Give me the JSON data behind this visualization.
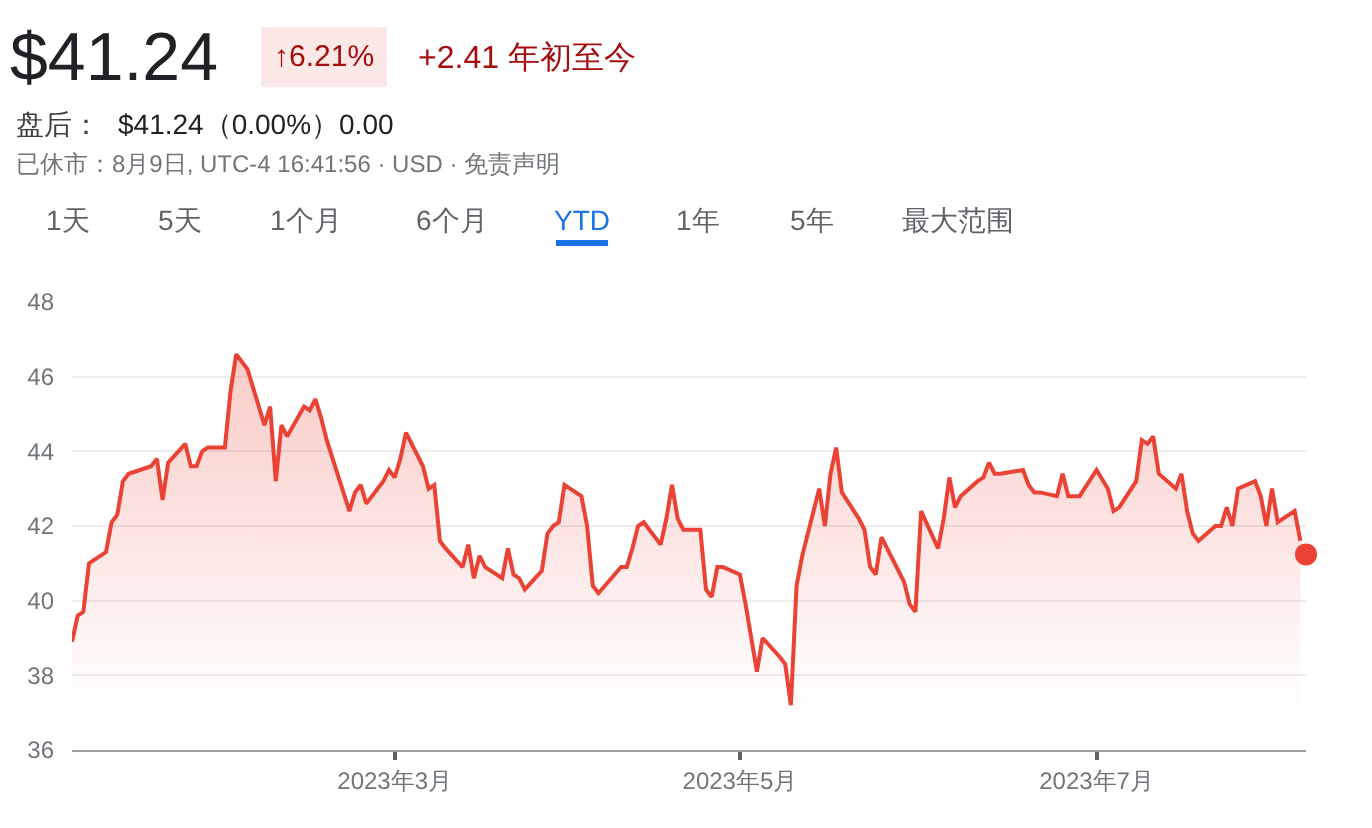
{
  "chart_data": {
    "type": "area",
    "title": "$41.24",
    "annotations": [
      "↑6.21%",
      "+2.41 年初至今",
      "盘后：",
      "$41.24（0.00%）0.00",
      "已休市：8月9日, UTC-4 16:41:56 · USD · 免责声明",
      "1天",
      "5天",
      "1个月",
      "6个月",
      "YTD",
      "1年",
      "5年",
      "最大范围"
    ],
    "x": [
      "2023-01-03",
      "2023-01-04",
      "2023-01-05",
      "2023-01-06",
      "2023-01-09",
      "2023-01-10",
      "2023-01-11",
      "2023-01-12",
      "2023-01-13",
      "2023-01-17",
      "2023-01-18",
      "2023-01-19",
      "2023-01-20",
      "2023-01-23",
      "2023-01-24",
      "2023-01-25",
      "2023-01-26",
      "2023-01-27",
      "2023-01-30",
      "2023-01-31",
      "2023-02-01",
      "2023-02-02",
      "2023-02-03",
      "2023-02-06",
      "2023-02-07",
      "2023-02-08",
      "2023-02-09",
      "2023-02-10",
      "2023-02-13",
      "2023-02-14",
      "2023-02-15",
      "2023-02-16",
      "2023-02-17",
      "2023-02-21",
      "2023-02-22",
      "2023-02-23",
      "2023-02-24",
      "2023-02-27",
      "2023-02-28",
      "2023-03-01",
      "2023-03-02",
      "2023-03-03",
      "2023-03-06",
      "2023-03-07",
      "2023-03-08",
      "2023-03-09",
      "2023-03-10",
      "2023-03-13",
      "2023-03-14",
      "2023-03-15",
      "2023-03-16",
      "2023-03-17",
      "2023-03-20",
      "2023-03-21",
      "2023-03-22",
      "2023-03-23",
      "2023-03-24",
      "2023-03-27",
      "2023-03-28",
      "2023-03-29",
      "2023-03-30",
      "2023-03-31",
      "2023-04-03",
      "2023-04-04",
      "2023-04-05",
      "2023-04-06",
      "2023-04-10",
      "2023-04-11",
      "2023-04-12",
      "2023-04-13",
      "2023-04-14",
      "2023-04-17",
      "2023-04-18",
      "2023-04-19",
      "2023-04-20",
      "2023-04-21",
      "2023-04-24",
      "2023-04-25",
      "2023-04-26",
      "2023-04-27",
      "2023-04-28",
      "2023-05-01",
      "2023-05-02",
      "2023-05-03",
      "2023-05-04",
      "2023-05-05",
      "2023-05-08",
      "2023-05-09",
      "2023-05-10",
      "2023-05-11",
      "2023-05-12",
      "2023-05-15",
      "2023-05-16",
      "2023-05-17",
      "2023-05-18",
      "2023-05-19",
      "2023-05-22",
      "2023-05-23",
      "2023-05-24",
      "2023-05-25",
      "2023-05-26",
      "2023-05-30",
      "2023-05-31",
      "2023-06-01",
      "2023-06-02",
      "2023-06-05",
      "2023-06-06",
      "2023-06-07",
      "2023-06-08",
      "2023-06-09",
      "2023-06-12",
      "2023-06-13",
      "2023-06-14",
      "2023-06-15",
      "2023-06-16",
      "2023-06-20",
      "2023-06-21",
      "2023-06-22",
      "2023-06-23",
      "2023-06-26",
      "2023-06-27",
      "2023-06-28",
      "2023-06-29",
      "2023-06-30",
      "2023-07-03",
      "2023-07-05",
      "2023-07-06",
      "2023-07-07",
      "2023-07-10",
      "2023-07-11",
      "2023-07-12",
      "2023-07-13",
      "2023-07-14",
      "2023-07-17",
      "2023-07-18",
      "2023-07-19",
      "2023-07-20",
      "2023-07-21",
      "2023-07-24",
      "2023-07-25",
      "2023-07-26",
      "2023-07-27",
      "2023-07-28",
      "2023-07-31",
      "2023-08-01",
      "2023-08-02",
      "2023-08-03",
      "2023-08-04",
      "2023-08-07",
      "2023-08-08"
    ],
    "series": [
      {
        "color": "#ea4335",
        "values": [
          38.9,
          39.6,
          39.7,
          41.0,
          41.3,
          42.1,
          42.3,
          43.2,
          43.4,
          43.6,
          43.8,
          42.7,
          43.7,
          44.2,
          43.6,
          43.6,
          44.0,
          44.1,
          44.1,
          45.6,
          46.6,
          46.4,
          46.2,
          44.7,
          45.2,
          43.2,
          44.7,
          44.4,
          45.2,
          45.1,
          45.4,
          44.9,
          44.3,
          42.4,
          42.9,
          43.1,
          42.6,
          43.2,
          43.5,
          43.3,
          43.8,
          44.5,
          43.6,
          43.0,
          43.1,
          41.6,
          41.4,
          40.9,
          41.5,
          40.6,
          41.2,
          40.9,
          40.6,
          41.4,
          40.7,
          40.6,
          40.3,
          40.8,
          41.8,
          42.0,
          42.1,
          43.1,
          42.8,
          42.0,
          40.4,
          40.2,
          40.9,
          40.9,
          41.4,
          42.0,
          42.1,
          41.5,
          42.2,
          43.1,
          42.2,
          41.9,
          41.9,
          40.3,
          40.1,
          40.9,
          40.9,
          40.7,
          39.9,
          39.0,
          38.1,
          39.0,
          38.5,
          38.3,
          37.2,
          40.4,
          41.2,
          43.0,
          42.0,
          43.4,
          44.1,
          42.9,
          42.2,
          41.9,
          40.9,
          40.7,
          41.7,
          40.5,
          39.9,
          39.7,
          42.4,
          41.4,
          42.2,
          43.3,
          42.5,
          42.8,
          43.2,
          43.3,
          43.7,
          43.4,
          43.4,
          43.5,
          43.1,
          42.9,
          42.9,
          42.8,
          43.4,
          42.8,
          42.8,
          42.8,
          43.5,
          43.0,
          42.4,
          42.5,
          43.2,
          44.3,
          44.2,
          44.4,
          43.4,
          43.0,
          43.4,
          42.4,
          41.8,
          41.6,
          42.0,
          42.0,
          42.5,
          42.0,
          43.0,
          43.2,
          42.8,
          42.0,
          43.0,
          42.1,
          42.4,
          41.6
        ]
      },
      {
        "type": "scatter",
        "color": "#ea4335",
        "x": [
          "2023-08-09"
        ],
        "values": [
          41.24
        ]
      }
    ],
    "xlim": [
      "2023-01-03",
      "2023-08-09"
    ],
    "xticks": [
      {
        "value": "2023-03-01",
        "label": "2023年3月"
      },
      {
        "value": "2023-05-01",
        "label": "2023年5月"
      },
      {
        "value": "2023-07-03",
        "label": "2023年7月"
      }
    ],
    "ylim": [
      36,
      48
    ],
    "yticks": [
      36,
      38,
      40,
      42,
      44,
      46,
      48
    ],
    "grid": "y"
  }
}
